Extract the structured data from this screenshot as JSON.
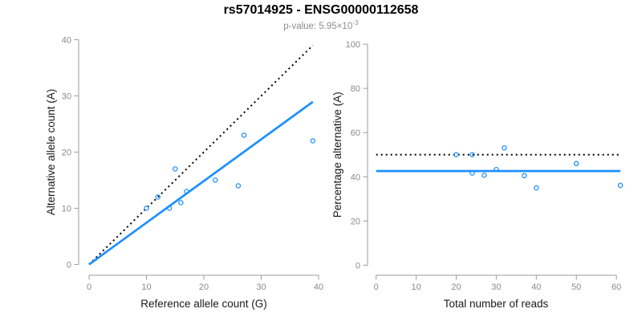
{
  "title": "rs57014925 - ENSG00000112658",
  "subtitle": {
    "text": "p-value: 5.95×10",
    "exponent": "-3"
  },
  "colors": {
    "accent_blue": "#1E90FF",
    "dotted_black": "#000000",
    "axis_gray": "#9b9b9b",
    "tick_label_gray": "#8a8a8a",
    "label_dark": "#1a1a1a",
    "subtitle_gray": "#8c8c8c"
  },
  "chart_data": [
    {
      "type": "scatter",
      "panel": "left",
      "xlabel": "Reference allele count (G)",
      "ylabel": "Alternative allele count (A)",
      "xlim": [
        0,
        40
      ],
      "ylim": [
        0,
        40
      ],
      "xticks": [
        0,
        10,
        20,
        30,
        40
      ],
      "yticks": [
        0,
        10,
        20,
        30,
        40
      ],
      "grid": false,
      "legend": null,
      "points": [
        [
          10,
          10
        ],
        [
          12,
          12
        ],
        [
          14,
          10
        ],
        [
          15,
          17
        ],
        [
          16,
          11
        ],
        [
          17,
          13
        ],
        [
          22,
          15
        ],
        [
          26,
          14
        ],
        [
          27,
          23
        ],
        [
          39,
          22
        ]
      ],
      "lines": [
        {
          "name": "identity-line",
          "style": "dotted",
          "color": "#000000",
          "x1": 0,
          "y1": 0,
          "x2": 39,
          "y2": 39
        },
        {
          "name": "fit-line",
          "style": "solid",
          "color": "#1E90FF",
          "x1": 0,
          "y1": 0,
          "x2": 39,
          "y2": 28.95
        }
      ]
    },
    {
      "type": "scatter",
      "panel": "right",
      "xlabel": "Total number of reads",
      "ylabel": "Percentage alternative (A)",
      "xlim": [
        0,
        61
      ],
      "ylim": [
        0,
        100
      ],
      "xticks": [
        0,
        10,
        20,
        30,
        40,
        50,
        60
      ],
      "yticks": [
        0,
        20,
        40,
        60,
        80,
        100
      ],
      "grid": false,
      "legend": null,
      "points": [
        [
          20,
          50
        ],
        [
          24,
          50
        ],
        [
          24,
          41.7
        ],
        [
          27,
          40.7
        ],
        [
          30,
          43.3
        ],
        [
          32,
          53.1
        ],
        [
          37,
          40.5
        ],
        [
          40,
          35
        ],
        [
          50,
          46
        ],
        [
          61,
          36.1
        ]
      ],
      "lines": [
        {
          "name": "expected-line",
          "style": "dotted",
          "color": "#000000",
          "x1": 0,
          "y1": 50,
          "x2": 61,
          "y2": 50
        },
        {
          "name": "mean-line",
          "style": "solid",
          "color": "#1E90FF",
          "x1": 0,
          "y1": 42.6,
          "x2": 61,
          "y2": 42.6
        }
      ]
    }
  ]
}
